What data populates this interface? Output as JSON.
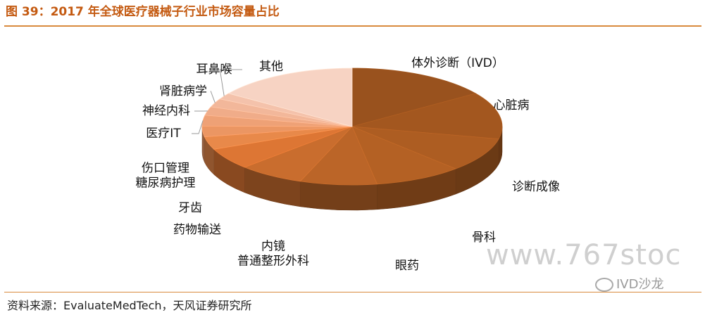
{
  "figure": {
    "title": "图 39：2017 年全球医疗器械子行业市场容量占比",
    "source": "资料来源：EvaluateMedTech，天风证券研究所"
  },
  "watermark": {
    "site": "www.767stoc",
    "badge": "IVD沙龙",
    "badge_icon": "wechat-icon"
  },
  "chart_data": {
    "type": "pie",
    "title": "",
    "three_d": true,
    "legend": "none",
    "categories": [
      "体外诊断（IVD）",
      "心脏病",
      "诊断成像",
      "骨科",
      "眼药",
      "内镜\n普通整形外科",
      "药物输送",
      "牙齿",
      "伤口管理\n糖尿病护理",
      "医疗IT",
      "神经内科",
      "肾脏病学",
      "耳鼻喉",
      "其他"
    ],
    "values": [
      13,
      11,
      8,
      8,
      7,
      6,
      5,
      3,
      2.5,
      2.5,
      2,
      2,
      1.5,
      13
    ],
    "colors": [
      "#99521e",
      "#a3571f",
      "#ad5d22",
      "#b46124",
      "#bb6528",
      "#c96d2e",
      "#dd7634",
      "#e8894a",
      "#eb9663",
      "#eea176",
      "#f0ac89",
      "#f2b79a",
      "#f4c2ab",
      "#f7d3c3"
    ]
  }
}
